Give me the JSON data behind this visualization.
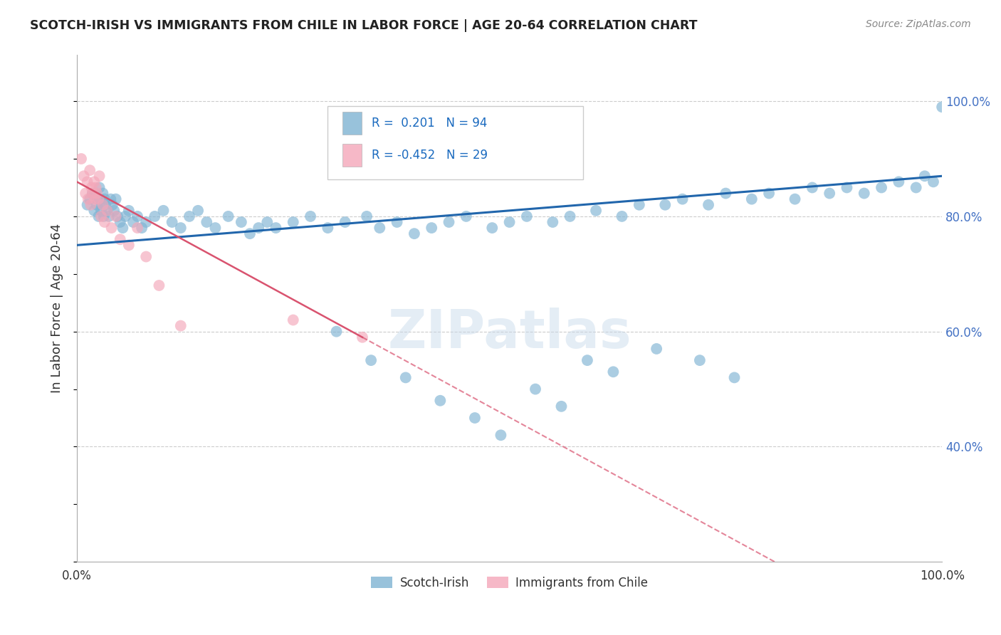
{
  "title": "SCOTCH-IRISH VS IMMIGRANTS FROM CHILE IN LABOR FORCE | AGE 20-64 CORRELATION CHART",
  "source": "Source: ZipAtlas.com",
  "ylabel": "In Labor Force | Age 20-64",
  "legend_label1": "Scotch-Irish",
  "legend_label2": "Immigrants from Chile",
  "R1": 0.201,
  "N1": 94,
  "R2": -0.452,
  "N2": 29,
  "blue_color": "#7fb3d3",
  "pink_color": "#f4a7b9",
  "blue_line_color": "#2166ac",
  "pink_line_color": "#d9536f",
  "watermark": "ZIPatlas",
  "scotch_irish_x": [
    1.2,
    1.5,
    1.8,
    2.0,
    2.1,
    2.3,
    2.4,
    2.5,
    2.6,
    2.7,
    2.8,
    2.9,
    3.0,
    3.1,
    3.2,
    3.3,
    3.5,
    3.7,
    3.9,
    4.1,
    4.3,
    4.5,
    4.7,
    5.0,
    5.3,
    5.6,
    6.0,
    6.5,
    7.0,
    7.5,
    8.0,
    9.0,
    10.0,
    11.0,
    12.0,
    13.0,
    14.0,
    15.0,
    16.0,
    17.5,
    19.0,
    20.0,
    21.0,
    22.0,
    23.0,
    25.0,
    27.0,
    29.0,
    31.0,
    33.5,
    35.0,
    37.0,
    39.0,
    41.0,
    43.0,
    45.0,
    48.0,
    50.0,
    52.0,
    55.0,
    57.0,
    60.0,
    63.0,
    65.0,
    68.0,
    70.0,
    73.0,
    75.0,
    78.0,
    80.0,
    83.0,
    85.0,
    87.0,
    89.0,
    91.0,
    93.0,
    95.0,
    97.0,
    98.0,
    99.0,
    100.0,
    30.0,
    34.0,
    38.0,
    42.0,
    46.0,
    49.0,
    53.0,
    56.0,
    59.0,
    62.0,
    67.0,
    72.0,
    76.0
  ],
  "scotch_irish_y": [
    82.0,
    83.0,
    84.0,
    81.0,
    84.0,
    82.0,
    83.0,
    80.0,
    85.0,
    83.0,
    81.0,
    82.0,
    84.0,
    80.0,
    83.0,
    82.0,
    81.0,
    80.0,
    83.0,
    82.0,
    81.0,
    83.0,
    80.0,
    79.0,
    78.0,
    80.0,
    81.0,
    79.0,
    80.0,
    78.0,
    79.0,
    80.0,
    81.0,
    79.0,
    78.0,
    80.0,
    81.0,
    79.0,
    78.0,
    80.0,
    79.0,
    77.0,
    78.0,
    79.0,
    78.0,
    79.0,
    80.0,
    78.0,
    79.0,
    80.0,
    78.0,
    79.0,
    77.0,
    78.0,
    79.0,
    80.0,
    78.0,
    79.0,
    80.0,
    79.0,
    80.0,
    81.0,
    80.0,
    82.0,
    82.0,
    83.0,
    82.0,
    84.0,
    83.0,
    84.0,
    83.0,
    85.0,
    84.0,
    85.0,
    84.0,
    85.0,
    86.0,
    85.0,
    87.0,
    86.0,
    99.0,
    60.0,
    55.0,
    52.0,
    48.0,
    45.0,
    42.0,
    50.0,
    47.0,
    55.0,
    53.0,
    57.0,
    55.0,
    52.0
  ],
  "chile_x": [
    0.5,
    0.8,
    1.0,
    1.2,
    1.3,
    1.5,
    1.6,
    1.7,
    1.8,
    2.0,
    2.1,
    2.2,
    2.3,
    2.5,
    2.6,
    2.8,
    3.0,
    3.2,
    3.5,
    4.0,
    4.5,
    5.0,
    6.0,
    7.0,
    8.0,
    9.5,
    12.0,
    25.0,
    33.0
  ],
  "chile_y": [
    90.0,
    87.0,
    84.0,
    86.0,
    83.0,
    88.0,
    82.0,
    85.0,
    84.0,
    86.0,
    83.0,
    85.0,
    84.0,
    83.0,
    87.0,
    80.0,
    82.0,
    79.0,
    81.0,
    78.0,
    80.0,
    76.0,
    75.0,
    78.0,
    73.0,
    68.0,
    61.0,
    62.0,
    59.0
  ]
}
